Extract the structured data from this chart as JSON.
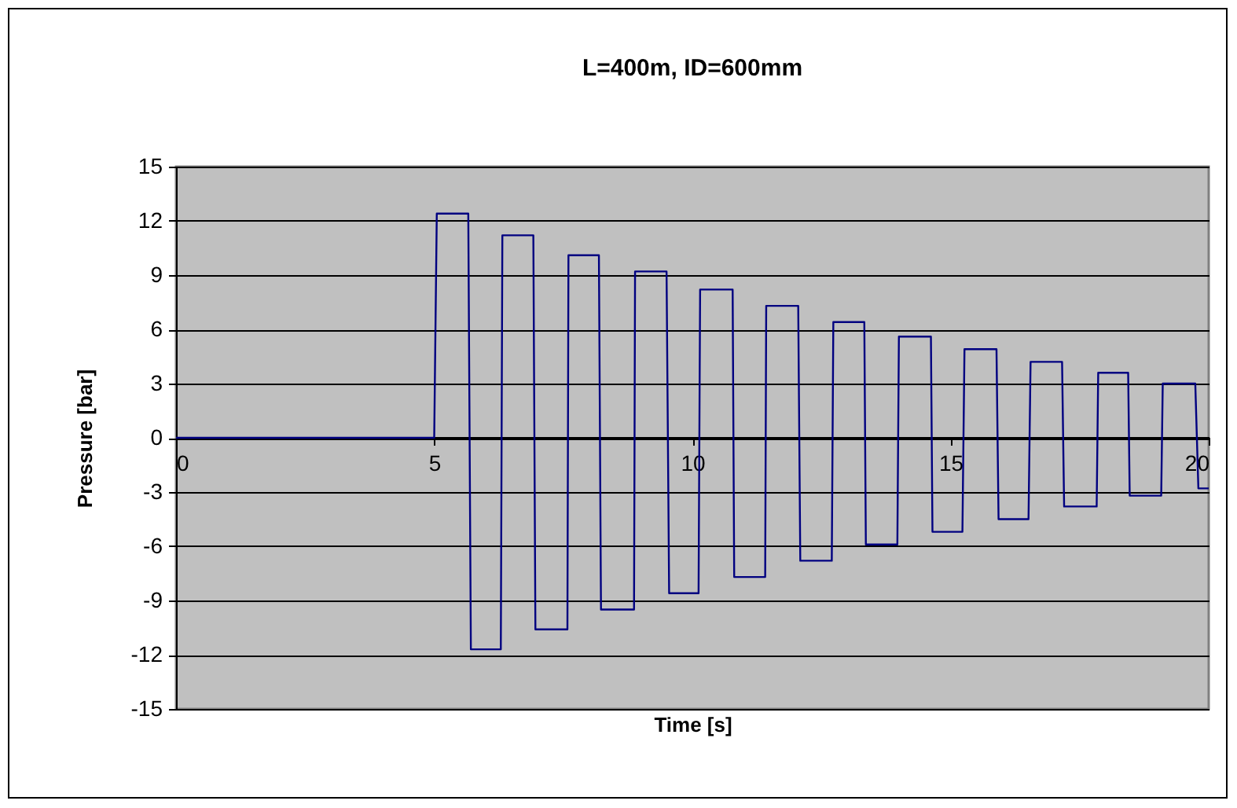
{
  "chart_data": {
    "type": "line",
    "title": "L=400m, ID=600mm",
    "xlabel": "Time [s]",
    "ylabel": "Pressure [bar]",
    "xlim": [
      0,
      20
    ],
    "xticks": [
      0,
      5,
      10,
      15,
      20
    ],
    "ylim": [
      -15,
      15
    ],
    "yticks": [
      -15,
      -12,
      -9,
      -6,
      -3,
      0,
      3,
      6,
      9,
      12,
      15
    ],
    "grid": "y",
    "series": [
      {
        "color": "#000080",
        "x": [
          0,
          5.0,
          5.05,
          5.66,
          5.71,
          6.29,
          6.32,
          6.92,
          6.96,
          7.58,
          7.6,
          8.19,
          8.23,
          8.87,
          8.89,
          9.5,
          9.55,
          10.12,
          10.15,
          10.78,
          10.81,
          11.41,
          11.43,
          12.05,
          12.09,
          12.7,
          12.73,
          13.33,
          13.36,
          13.97,
          14.0,
          14.62,
          14.65,
          15.23,
          15.27,
          15.89,
          15.93,
          16.51,
          16.55,
          17.16,
          17.2,
          17.83,
          17.86,
          18.44,
          18.47,
          19.08,
          19.11,
          19.74,
          19.8,
          20
        ],
        "values": [
          0,
          0,
          12.4,
          12.4,
          -11.7,
          -11.7,
          11.2,
          11.2,
          -10.6,
          -10.6,
          10.1,
          10.1,
          -9.5,
          -9.5,
          9.2,
          9.2,
          -8.6,
          -8.6,
          8.2,
          8.2,
          -7.7,
          -7.7,
          7.3,
          7.3,
          -6.8,
          -6.8,
          6.4,
          6.4,
          -5.9,
          -5.9,
          5.6,
          5.6,
          -5.2,
          -5.2,
          4.9,
          4.9,
          -4.5,
          -4.5,
          4.2,
          4.2,
          -3.8,
          -3.8,
          3.6,
          3.6,
          -3.2,
          -3.2,
          3.0,
          3.0,
          -2.8,
          -2.8
        ]
      }
    ]
  }
}
